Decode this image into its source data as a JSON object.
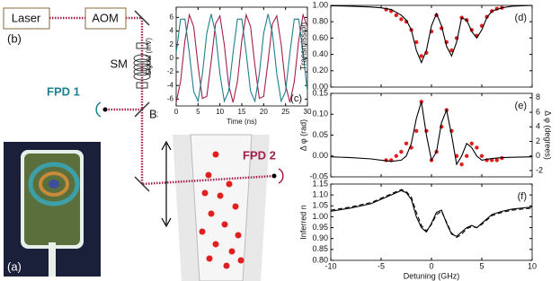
{
  "diagram": {
    "laser": "Laser",
    "aom": "AOM",
    "panel_b": "(b)",
    "sm": "SM",
    "fpd1": "FPD 1",
    "bs": "BS",
    "fpd2": "FPD 2",
    "panel_a": "(a)"
  },
  "chart_data": [
    {
      "type": "line",
      "panel": "(c)",
      "xlabel": "Time (ns)",
      "ylabel": "Signal (mV)",
      "xlim": [
        0,
        30
      ],
      "ylim": [
        -7,
        7.5
      ],
      "xticks": [
        0,
        5,
        10,
        15,
        20,
        25,
        30
      ],
      "yticks": [
        -6,
        -4,
        -2,
        0,
        2,
        4,
        6
      ],
      "series": [
        {
          "type": "line",
          "color": "#1d7f90",
          "x": [
            0,
            1,
            2,
            3,
            4,
            5,
            6,
            7,
            8,
            9,
            10,
            11,
            12,
            13,
            14,
            15,
            16,
            17,
            18,
            19,
            20,
            21,
            22,
            23,
            24,
            25,
            26,
            27,
            28,
            29,
            30
          ],
          "values": [
            0.78,
            5.75,
            5.75,
            0.78,
            -4.87,
            -6.31,
            -2.31,
            3.69,
            6.5,
            3.69,
            -2.3,
            -6.31,
            -4.87,
            0.78,
            5.75,
            5.76,
            0.79,
            -4.86,
            -6.31,
            -2.31,
            3.68,
            6.5,
            3.7,
            -2.3,
            -6.31,
            -4.87,
            0.77,
            5.75,
            5.76,
            0.79,
            -4.86
          ]
        },
        {
          "type": "line",
          "color": "#a3204c",
          "x": [
            0,
            1,
            2,
            3,
            4,
            5,
            6,
            7,
            8,
            9,
            10,
            11,
            12,
            13,
            14,
            15,
            16,
            17,
            18,
            19,
            20,
            21,
            22,
            23,
            24,
            25,
            26,
            27,
            28,
            29,
            30
          ],
          "values": [
            -6.49,
            -3.43,
            2.59,
            6.38,
            4.65,
            -1.09,
            -5.9,
            -5.6,
            -0.47,
            5.06,
            6.23,
            2.01,
            -3.94,
            -6.49,
            -3.43,
            2.59,
            6.38,
            4.66,
            -1.08,
            -5.89,
            -5.6,
            -0.47,
            5.06,
            6.23,
            2.02,
            -3.94,
            -6.49,
            -3.44,
            2.58,
            6.38,
            4.66
          ]
        }
      ]
    },
    {
      "type": "line",
      "panel": "(d)",
      "ylabel": "Transmission",
      "xlim": [
        -10,
        10
      ],
      "ylim": [
        0,
        1
      ],
      "yticks": [
        {
          "value": 0,
          "label": "0.00"
        },
        {
          "value": 0.2,
          "label": "0.20"
        },
        {
          "value": 0.4,
          "label": "0.40"
        },
        {
          "value": 0.6,
          "label": "0.60"
        },
        {
          "value": 0.8,
          "label": "0.80"
        },
        {
          "value": 1,
          "label": "1.00"
        }
      ],
      "series": [
        {
          "type": "line",
          "color": "#000000",
          "x": [
            -10,
            -8,
            -6,
            -5,
            -4,
            -3,
            -2.5,
            -2,
            -1.5,
            -1,
            -0.5,
            0,
            0.5,
            1,
            1.5,
            2,
            2.5,
            3,
            3.5,
            4,
            4.5,
            5,
            5.5,
            6,
            7,
            8,
            10
          ],
          "values": [
            0.995,
            0.99,
            0.98,
            0.97,
            0.95,
            0.88,
            0.82,
            0.7,
            0.45,
            0.3,
            0.45,
            0.75,
            0.9,
            0.75,
            0.5,
            0.38,
            0.55,
            0.85,
            0.82,
            0.68,
            0.6,
            0.7,
            0.85,
            0.93,
            0.97,
            0.99,
            1.0
          ]
        },
        {
          "type": "scatter",
          "color": "#e02020",
          "x": [
            -4.5,
            -4,
            -3.5,
            -3,
            -2.5,
            -2,
            -1.5,
            -1,
            -0.5,
            0,
            0.5,
            1,
            1.5,
            2,
            2.5,
            3,
            3.5,
            4,
            4.5,
            5,
            5.5,
            6,
            6.5,
            7
          ],
          "values": [
            0.95,
            0.93,
            0.88,
            0.83,
            0.8,
            0.7,
            0.55,
            0.38,
            0.42,
            0.68,
            0.88,
            0.72,
            0.55,
            0.45,
            0.6,
            0.85,
            0.82,
            0.7,
            0.63,
            0.75,
            0.86,
            0.93,
            0.96,
            0.97
          ]
        }
      ]
    },
    {
      "type": "line",
      "panel": "(e)",
      "ylabel": "Δ φ (rad)",
      "y2label": "Δ φ (degrees)",
      "xlim": [
        -10,
        10
      ],
      "ylim": [
        -0.05,
        0.15
      ],
      "y2lim": [
        -2.865,
        8.594
      ],
      "yticks": [
        {
          "value": -0.05,
          "label": "-0.05"
        },
        {
          "value": 0,
          "label": "0.00"
        },
        {
          "value": 0.05,
          "label": "0.05"
        },
        {
          "value": 0.1,
          "label": "0.10"
        },
        {
          "value": 0.15,
          "label": "0.15"
        }
      ],
      "y2ticks": [
        -2,
        0,
        2,
        4,
        6,
        8
      ],
      "series": [
        {
          "type": "line",
          "color": "#000000",
          "x": [
            -10,
            -8,
            -6,
            -5,
            -4,
            -3,
            -2.5,
            -2,
            -1.5,
            -1,
            -0.5,
            0,
            0.5,
            1,
            1.5,
            2,
            2.5,
            3,
            3.5,
            4,
            4.5,
            5,
            5.5,
            6,
            7,
            8,
            10
          ],
          "values": [
            -0.002,
            -0.004,
            -0.007,
            -0.01,
            -0.013,
            -0.01,
            0.0,
            0.03,
            0.09,
            0.13,
            0.05,
            -0.01,
            0.01,
            0.08,
            0.11,
            0.05,
            -0.02,
            0.0,
            0.03,
            0.02,
            0.0,
            -0.01,
            -0.008,
            -0.006,
            -0.004,
            -0.003,
            -0.002
          ]
        },
        {
          "type": "scatter",
          "color": "#e02020",
          "x": [
            -4.5,
            -4,
            -3.5,
            -3,
            -2.5,
            -2,
            -1.5,
            -1,
            -0.5,
            0,
            0.5,
            1,
            1.5,
            2,
            2.5,
            3,
            3.5,
            4,
            4.5,
            5,
            5.5,
            6,
            6.5,
            7
          ],
          "values": [
            -0.01,
            -0.01,
            0.0,
            0.01,
            0.03,
            0.02,
            0.06,
            0.13,
            0.06,
            -0.01,
            0.01,
            0.07,
            0.11,
            0.06,
            0.0,
            -0.02,
            0.0,
            0.03,
            0.02,
            0.0,
            -0.01,
            -0.01,
            -0.01,
            -0.005
          ]
        }
      ]
    },
    {
      "type": "line",
      "panel": "(f)",
      "xlabel": "Detuning (GHz)",
      "ylabel": "Inferred n",
      "xlim": [
        -10,
        10
      ],
      "ylim": [
        0.8,
        1.15
      ],
      "xticks": [
        -10,
        -5,
        0,
        5,
        10
      ],
      "yticks": [
        {
          "value": 0.8,
          "label": "0.80"
        },
        {
          "value": 0.85,
          "label": "0.85"
        },
        {
          "value": 0.9,
          "label": "0.90"
        },
        {
          "value": 0.95,
          "label": "0.95"
        },
        {
          "value": 1.0,
          "label": "1.00"
        },
        {
          "value": 1.05,
          "label": "1.05"
        },
        {
          "value": 1.1,
          "label": "1.10"
        },
        {
          "value": 1.15,
          "label": "1.15"
        }
      ],
      "series": [
        {
          "type": "line",
          "color": "#000000",
          "x": [
            -10,
            -8,
            -6,
            -5,
            -4,
            -3,
            -2.5,
            -2,
            -1.5,
            -1,
            -0.5,
            0,
            0.5,
            1,
            1.5,
            2,
            2.5,
            3,
            3.5,
            4,
            4.5,
            5,
            5.5,
            6,
            7,
            8,
            10
          ],
          "values": [
            1.025,
            1.04,
            1.06,
            1.08,
            1.1,
            1.12,
            1.11,
            1.08,
            1.0,
            0.95,
            0.93,
            0.97,
            1.02,
            1.03,
            0.97,
            0.92,
            0.91,
            0.93,
            0.95,
            0.96,
            0.95,
            0.97,
            0.99,
            1.01,
            1.025,
            1.035,
            1.045
          ]
        },
        {
          "type": "line",
          "dash": true,
          "color": "#000000",
          "x": [
            -10,
            -8,
            -6,
            -5,
            -4,
            -3,
            -2.5,
            -2,
            -1.5,
            -1,
            -0.5,
            0,
            0.5,
            1,
            1.5,
            2,
            2.5,
            3,
            3.5,
            4,
            4.5,
            5,
            5.5,
            6,
            7,
            8,
            10
          ],
          "values": [
            1.03,
            1.045,
            1.065,
            1.085,
            1.105,
            1.125,
            1.115,
            1.09,
            1.02,
            0.96,
            0.935,
            0.965,
            1.01,
            1.025,
            0.975,
            0.925,
            0.905,
            0.92,
            0.945,
            0.955,
            0.95,
            0.965,
            0.985,
            1.005,
            1.02,
            1.03,
            1.04
          ]
        }
      ]
    }
  ]
}
